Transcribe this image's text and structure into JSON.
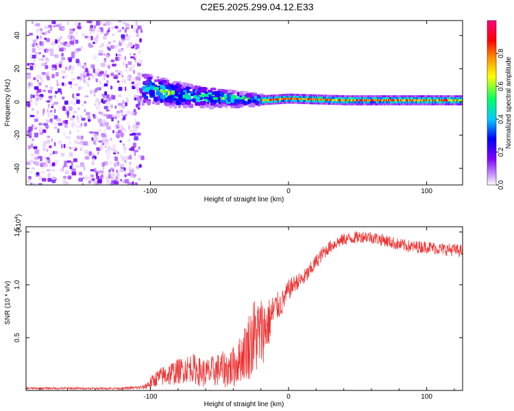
{
  "title": "C2E5.2025.299.04.12.E33",
  "chart_data": [
    {
      "type": "heatmap",
      "xlabel": "Height of straight line (km)",
      "ylabel": "Frequency (Hz)",
      "xlim": [
        -190,
        126
      ],
      "ylim": [
        -50,
        49
      ],
      "xticks": [
        -100,
        0,
        100
      ],
      "xtick_labels": [
        "-100",
        "0",
        "100"
      ],
      "yticks": [
        -40,
        -20,
        0,
        20,
        40
      ],
      "ytick_labels": [
        "-40",
        "-20",
        "0",
        "20",
        "40"
      ],
      "colorbar": {
        "label": "Normalized spectral amplitude",
        "range": [
          0,
          1
        ],
        "ticks": [
          0.0,
          0.2,
          0.4,
          0.6,
          0.8
        ],
        "tick_labels": [
          "0.0",
          "0.2",
          "0.4",
          "0.6",
          "0.8"
        ],
        "colors": [
          "#ffffff",
          "#cc99ff",
          "#8000ff",
          "#0000ff",
          "#00ccff",
          "#00ff66",
          "#ffff00",
          "#ff8800",
          "#ff0000",
          "#ff0080"
        ]
      },
      "regions": [
        {
          "x": [
            -190,
            -107
          ],
          "freq": [
            -50,
            49
          ],
          "level": 0.15,
          "description": "broadband noise"
        },
        {
          "x": [
            -107,
            -20
          ],
          "freq": [
            -6,
            12
          ],
          "level": 0.45,
          "description": "scattered energy band"
        },
        {
          "x": [
            -20,
            126
          ],
          "freq": [
            -1,
            4
          ],
          "level": 0.85,
          "description": "narrow line near 1 Hz"
        }
      ],
      "ridge": {
        "x": [
          -107,
          -80,
          -50,
          -20,
          0,
          40,
          80,
          126
        ],
        "freq": [
          8,
          4,
          2,
          1,
          2,
          1,
          1,
          1
        ]
      }
    },
    {
      "type": "line",
      "xlabel": "Height of straight line (km)",
      "ylabel": "SNR (10 * v/v)",
      "multiplier_label": "(x10",
      "multiplier_exp": "4",
      "multiplier_close": ")",
      "xlim": [
        -190,
        126
      ],
      "ylim": [
        0,
        1.55
      ],
      "xticks": [
        -100,
        0,
        100
      ],
      "xtick_labels": [
        "-100",
        "0",
        "100"
      ],
      "yticks": [
        0.5,
        1.0,
        1.5
      ],
      "ytick_labels": [
        "0.5",
        "1.0",
        "1.5"
      ],
      "color": "#ee3333",
      "series": [
        {
          "name": "SNR",
          "x": [
            -190,
            -150,
            -120,
            -105,
            -100,
            -95,
            -90,
            -85,
            -80,
            -75,
            -70,
            -65,
            -60,
            -55,
            -50,
            -45,
            -40,
            -35,
            -30,
            -25,
            -20,
            -15,
            -10,
            -5,
            0,
            5,
            10,
            15,
            20,
            25,
            30,
            35,
            40,
            45,
            50,
            55,
            60,
            70,
            80,
            90,
            100,
            110,
            120,
            126
          ],
          "y": [
            0.02,
            0.02,
            0.02,
            0.03,
            0.07,
            0.12,
            0.14,
            0.16,
            0.18,
            0.2,
            0.22,
            0.18,
            0.16,
            0.18,
            0.2,
            0.2,
            0.22,
            0.3,
            0.4,
            0.5,
            0.55,
            0.62,
            0.78,
            0.82,
            0.95,
            1.02,
            1.05,
            1.12,
            1.22,
            1.3,
            1.36,
            1.4,
            1.43,
            1.44,
            1.45,
            1.46,
            1.45,
            1.42,
            1.38,
            1.36,
            1.36,
            1.34,
            1.33,
            1.32
          ],
          "noise": [
            0.01,
            0.01,
            0.01,
            0.02,
            0.06,
            0.08,
            0.1,
            0.12,
            0.12,
            0.13,
            0.14,
            0.14,
            0.14,
            0.15,
            0.16,
            0.18,
            0.2,
            0.22,
            0.3,
            0.4,
            0.35,
            0.25,
            0.15,
            0.12,
            0.1,
            0.08,
            0.08,
            0.08,
            0.07,
            0.07,
            0.06,
            0.06,
            0.06,
            0.06,
            0.06,
            0.06,
            0.06,
            0.06,
            0.06,
            0.06,
            0.06,
            0.06,
            0.06,
            0.06
          ]
        }
      ]
    }
  ]
}
